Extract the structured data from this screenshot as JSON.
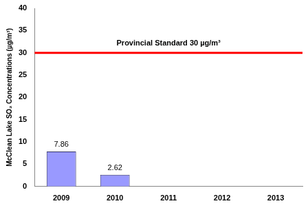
{
  "chart_data": {
    "type": "bar",
    "y_label": "McClean Lake SO₂ Concentrations (µg/m³)",
    "categories": [
      "2009",
      "2010",
      "2011",
      "2012",
      "2013"
    ],
    "values": [
      7.86,
      2.62,
      null,
      null,
      null
    ],
    "color": "#9999ff",
    "ylim": [
      0,
      40
    ],
    "yticks": [
      0,
      5,
      10,
      15,
      20,
      25,
      30,
      35,
      40
    ],
    "grid": false,
    "data_labels": true,
    "reference_line": {
      "value": 30,
      "label": "Provincial Standard 30 µg/m³",
      "color": "#ff0000"
    }
  }
}
